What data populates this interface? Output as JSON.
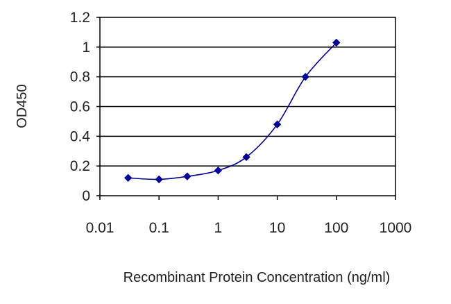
{
  "chart_data": {
    "type": "line",
    "title": "",
    "xlabel": "Recombinant Protein Concentration (ng/ml)",
    "ylabel": "OD450",
    "x_scale": "log",
    "xlim": [
      0.01,
      1000
    ],
    "ylim": [
      0,
      1.2
    ],
    "x_ticks": [
      "0.01",
      "0.1",
      "1",
      "10",
      "100",
      "1000"
    ],
    "y_ticks": [
      "0",
      "0.2",
      "0.4",
      "0.6",
      "0.8",
      "1",
      "1.2"
    ],
    "grid": "horizontal",
    "legend": "none",
    "series": [
      {
        "x": [
          0.03,
          0.1,
          0.3,
          1,
          3,
          10,
          30,
          100
        ],
        "y": [
          0.12,
          0.11,
          0.13,
          0.17,
          0.26,
          0.48,
          0.8,
          1.03
        ],
        "color": "#000099",
        "marker": "diamond"
      }
    ]
  }
}
